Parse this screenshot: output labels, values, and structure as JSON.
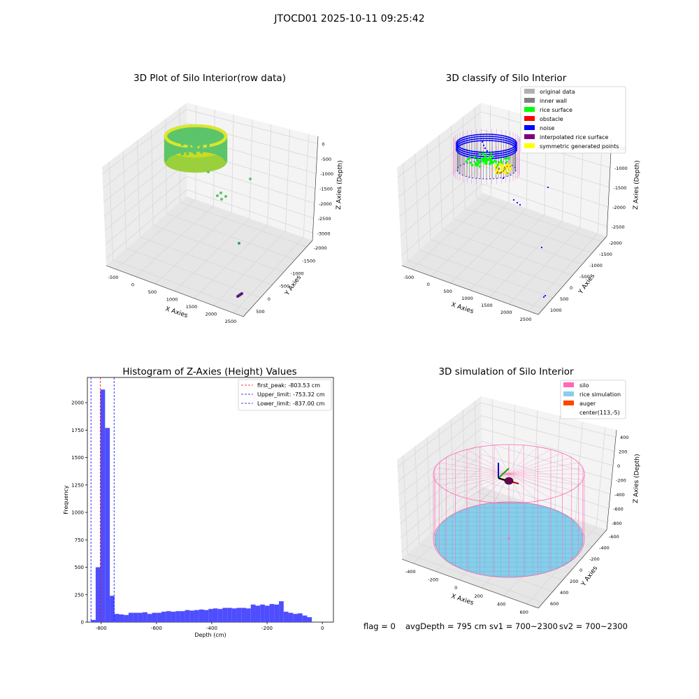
{
  "suptitle": "JTOCD01 2025-10-11 09:25:42",
  "status": {
    "flag": "flag = 0",
    "avg_depth": "avgDepth = 795 cm",
    "sv1": "sv1 = 700~2300",
    "sv2": "sv2 = 700~2300"
  },
  "chart_data": [
    {
      "type": "scatter",
      "title": "3D Plot of Silo Interior(row data)",
      "xlabel": "X Axies",
      "ylabel": "Y Axies",
      "zlabel": "Z Axies (Depth)",
      "x_ticks": [
        "-500",
        "0",
        "500",
        "1000",
        "1500",
        "2000",
        "2500"
      ],
      "y_ticks": [
        "500",
        "0",
        "-500",
        "-1000",
        "-1500",
        "-2000"
      ],
      "z_ticks": [
        "0",
        "-500",
        "-1000",
        "-1500",
        "-2000",
        "-2500",
        "-3000"
      ],
      "colors": {
        "cylinder": "#c8dc22",
        "cylinder_inner": "#5cc46a",
        "outlier_teal": "#27a07c",
        "outlier_purple": "#5c1a7a"
      }
    },
    {
      "type": "scatter",
      "title": "3D classify of Silo Interior",
      "xlabel": "X Axies",
      "ylabel": "Y Axies",
      "zlabel": "Z Axies (Depth)",
      "x_ticks": [
        "-500",
        "0",
        "500",
        "1000",
        "1500",
        "2000",
        "2500"
      ],
      "y_ticks": [
        "1000",
        "500",
        "0",
        "-500",
        "-1000",
        "-1500",
        "-2000"
      ],
      "z_ticks": [
        "-500",
        "-1000",
        "-1500",
        "-2000",
        "-2500"
      ],
      "legend": [
        {
          "label": "original data",
          "color": "#b0b0b0"
        },
        {
          "label": "inner wall",
          "color": "#808080"
        },
        {
          "label": "rice surface",
          "color": "#00ff00"
        },
        {
          "label": "obstacle",
          "color": "#ff0000"
        },
        {
          "label": "noise",
          "color": "#0000ff"
        },
        {
          "label": "interpolated rice surface",
          "color": "#800080"
        },
        {
          "label": "symmetric generated points",
          "color": "#ffff00"
        }
      ],
      "legend_placement": "top-right"
    },
    {
      "type": "bar",
      "title": "Histogram of Z-Axies (Height) Values",
      "xlabel": "Depth (cm)",
      "ylabel": "Frequency",
      "xlim": [
        -850,
        40
      ],
      "ylim": [
        0,
        2230
      ],
      "x_ticks": [
        -800,
        -600,
        -400,
        -200,
        0
      ],
      "y_ticks": [
        0,
        250,
        500,
        750,
        1000,
        1250,
        1500,
        1750,
        2000
      ],
      "bin_width": 17,
      "bin_start": -837,
      "values": [
        20,
        500,
        2120,
        1770,
        240,
        75,
        70,
        65,
        85,
        85,
        85,
        90,
        75,
        85,
        85,
        95,
        100,
        95,
        100,
        100,
        110,
        105,
        110,
        115,
        110,
        120,
        125,
        120,
        130,
        130,
        125,
        130,
        130,
        125,
        160,
        150,
        160,
        150,
        165,
        160,
        190,
        95,
        85,
        75,
        80,
        60,
        45
      ],
      "bar_color": "#4444ff",
      "vlines": [
        {
          "x": -803.53,
          "color": "#ff0000",
          "label": "first_peak: -803.53 cm"
        },
        {
          "x": -753.32,
          "color": "#0000ff",
          "label": "Upper_limit: -753.32 cm"
        },
        {
          "x": -837.0,
          "color": "#0000ff",
          "label": "Lower_limit: -837.00 cm"
        }
      ],
      "legend_placement": "top-right"
    },
    {
      "type": "scatter",
      "title": "3D simulation of Silo Interior",
      "xlabel": "X Axies",
      "ylabel": "Y Axies",
      "zlabel": "Z Axies (Depth)",
      "x_ticks": [
        "-400",
        "-200",
        "0",
        "200",
        "400",
        "600"
      ],
      "y_ticks": [
        "600",
        "400",
        "200",
        "0",
        "-200",
        "-400",
        "-600"
      ],
      "z_ticks": [
        "400",
        "200",
        "0",
        "-200",
        "-400",
        "-600",
        "-800"
      ],
      "legend": [
        {
          "label": "silo",
          "color": "#ff69b4"
        },
        {
          "label": "rice simulation",
          "color": "#87ceeb"
        },
        {
          "label": "auger",
          "color": "#ff4500"
        },
        {
          "label": "center(113,-5)",
          "color": ""
        }
      ],
      "legend_placement": "top-right"
    }
  ]
}
